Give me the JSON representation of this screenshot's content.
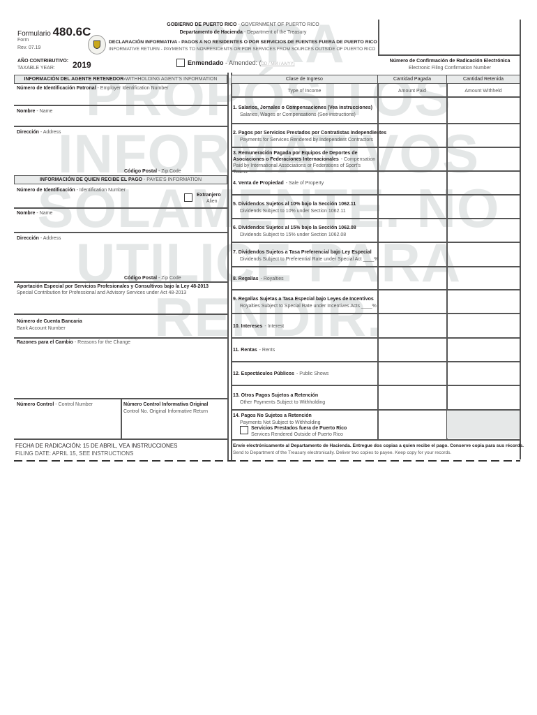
{
  "watermark": [
    "PARA",
    "PROPÓSITOS",
    "INFORMATIVOS",
    "SOLAMENTE. NO",
    "UTILICE PARA",
    "RENDIR."
  ],
  "header": {
    "formulario": "Formulario",
    "form_number": "480.6C",
    "form": "Form",
    "rev": "Rev. 07.19",
    "gov_es": "GOBIERNO DE PUERTO RICO",
    "gov_en": "- GOVERNMENT OF PUERTO RICO",
    "dept_es": "Departamento de Hacienda",
    "dept_en": "- Department of the Treasury",
    "title_es": "DECLARACIÓN INFORMATIVA - PAGOS A NO RESIDENTES O POR SERVICIOS DE FUENTES FUERA DE PUERTO RICO",
    "title_en": "INFORMATIVE RETURN - PAYMENTS TO NONRESIDENTS OR FOR SERVICES FROM SOURCES OUTSIDE OF PUERTO RICO",
    "year_es": "AÑO CONTRIBUTIVO:",
    "year_en": "TAXABLE YEAR:",
    "year": "2019",
    "amended_es": "Enmendado",
    "amended_en": "- Amended: (",
    "amended_date": "DD / MM / AA/YY)",
    "conf_es": "Número de Confirmación de Radicación Electrónica",
    "conf_en": "Electronic Filing Confirmation Number"
  },
  "agent": {
    "header_es": "INFORMACIÓN DEL AGENTE RETENEDOR-",
    "header_en": "WITHHOLDING AGENT'S INFORMATION",
    "ein_es": "Número de Identificación Patronal",
    "ein_en": "- Employer Identification Number",
    "name_es": "Nombre",
    "name_en": "- Name",
    "addr_es": "Dirección",
    "addr_en": "- Address",
    "zip_es": "Código Postal",
    "zip_en": "- Zip Code"
  },
  "payee": {
    "header_es": "INFORMACIÓN DE QUIEN RECIBE EL PAGO",
    "header_en": "- PAYEE'S INFORMATION",
    "id_es": "Número de Identificación",
    "id_en": "- Identification Number",
    "alien_es": "Extranjero",
    "alien_en": "Alien",
    "name_es": "Nombre",
    "name_en": "- Name",
    "addr_es": "Dirección",
    "addr_en": "- Address",
    "zip_es": "Código Postal",
    "zip_en": "- Zip Code"
  },
  "special_es": "Aportación Especial por Servicios Profesionales y Consultivos bajo la Ley 48-2013",
  "special_en": "Special Contribution for Professional and Advisory Services under Act 48-2013",
  "bank_es": "Número de Cuenta Bancaria",
  "bank_en": "Bank Account Number",
  "reasons_es": "Razones para el Cambio",
  "reasons_en": "- Reasons for the Change",
  "control_es": "Número Control",
  "control_en": "- Control Number",
  "orig_es": "Número Control Informativa Original",
  "orig_en": "Control No. Original Informative Return",
  "filing_es": "FECHA DE RADICACIÓN: 15 DE ABRIL, VEA INSTRUCCIONES",
  "filing_en": "FILING DATE: APRIL 15, SEE INSTRUCTIONS",
  "table": {
    "col1_es": "Clase de Ingreso",
    "col1_en": "Type of Income",
    "col2_es": "Cantidad Pagada",
    "col2_en": "Amount Paid",
    "col3_es": "Cantidad Retenida",
    "col3_en": "Amount Withheld",
    "rows": [
      {
        "es": "1.  Salarios, Jornales o Compensaciones (Vea instrucciones)",
        "en": "Salaries, Wages or Compensations (See instructions)"
      },
      {
        "es": "2.  Pagos por Servicios Prestados por Contratistas Independientes",
        "en": "Payments for Services Rendered by Independent Contractors"
      },
      {
        "es": "3.  Remuneración Pagada por Equipos de Deportes de Asociaciones o Federaciones Internacionales",
        "en": "- Compensation Paid by International Associations or Federations of Sport's Teams"
      },
      {
        "es": "4.  Venta de Propiedad",
        "en": "- Sale of Property"
      },
      {
        "es": "5.  Dividendos Sujetos al 10% bajo la Sección 1062.11",
        "en": "Dividends Subject to 10% under Section 1062.11"
      },
      {
        "es": "6.  Dividendos Sujetos al 15% bajo la Sección 1062.08",
        "en": "Dividends Subject to 15% under Section 1062.08"
      },
      {
        "es": "7.  Dividendos Sujetos a Tasa Preferencial bajo Ley Especial",
        "en": "Dividends Subject to Preferential Rate under Special Act ____%"
      },
      {
        "es": "8.  Regalías",
        "en": "- Royalties"
      },
      {
        "es": "9.  Regalías Sujetas a Tasa Especial bajo Leyes de Incentivos",
        "en": "Royalties Subject to Special Rate under Incentives Acts ____%"
      },
      {
        "es": "10. Intereses",
        "en": "- Interest"
      },
      {
        "es": "11. Rentas",
        "en": "- Rents"
      },
      {
        "es": "12. Espectáculos Públicos",
        "en": "- Public Shows"
      },
      {
        "es": "13. Otros Pagos Sujetos a Retención",
        "en": "Other Payments Subject to Withholding"
      },
      {
        "es": "14. Pagos No Sujetos a Retención",
        "en": "Payments Not Subject to Withholding"
      }
    ],
    "outside_es": "Servicios Prestados fuera de Puerto Rico",
    "outside_en": "Services Rendered Outside of Puerto Rico"
  },
  "footer_es": "Envíe electrónicamente al Departamento de Hacienda. Entregue dos copias a quien recibe el pago. Conserve copia para sus récords.",
  "footer_en": "Send to Department of the Treasury electronically. Deliver two copies to payee. Keep copy for your records."
}
